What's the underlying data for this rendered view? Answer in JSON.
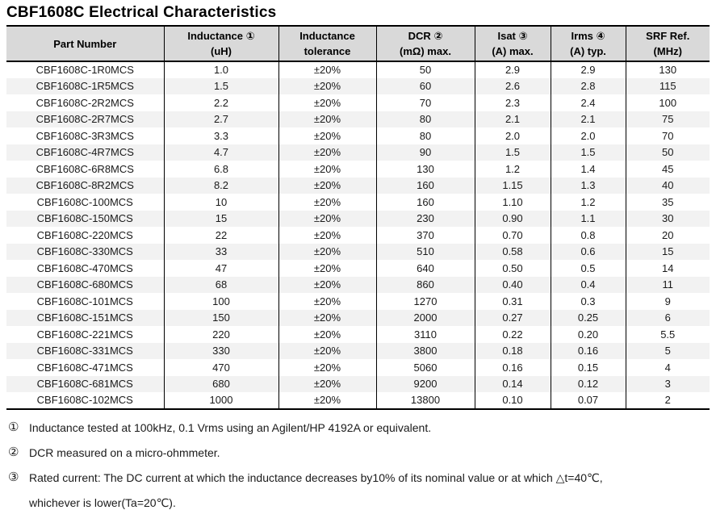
{
  "page_title": "CBF1608C Electrical Characteristics",
  "table": {
    "columns": [
      {
        "id": "part-number",
        "l1": "Part Number",
        "l2": ""
      },
      {
        "id": "inductance",
        "l1": "Inductance ①",
        "l2": "(uH)"
      },
      {
        "id": "tolerance",
        "l1": "Inductance",
        "l2": "tolerance"
      },
      {
        "id": "dcr",
        "l1": "DCR ②",
        "l2": "(mΩ) max."
      },
      {
        "id": "isat",
        "l1": "Isat ③",
        "l2": "(A) max."
      },
      {
        "id": "irms",
        "l1": "Irms ④",
        "l2": "(A) typ."
      },
      {
        "id": "srf",
        "l1": "SRF Ref.",
        "l2": "(MHz)"
      }
    ],
    "rows": [
      [
        "CBF1608C-1R0MCS",
        "1.0",
        "±20%",
        "50",
        "2.9",
        "2.9",
        "130"
      ],
      [
        "CBF1608C-1R5MCS",
        "1.5",
        "±20%",
        "60",
        "2.6",
        "2.8",
        "115"
      ],
      [
        "CBF1608C-2R2MCS",
        "2.2",
        "±20%",
        "70",
        "2.3",
        "2.4",
        "100"
      ],
      [
        "CBF1608C-2R7MCS",
        "2.7",
        "±20%",
        "80",
        "2.1",
        "2.1",
        "75"
      ],
      [
        "CBF1608C-3R3MCS",
        "3.3",
        "±20%",
        "80",
        "2.0",
        "2.0",
        "70"
      ],
      [
        "CBF1608C-4R7MCS",
        "4.7",
        "±20%",
        "90",
        "1.5",
        "1.5",
        "50"
      ],
      [
        "CBF1608C-6R8MCS",
        "6.8",
        "±20%",
        "130",
        "1.2",
        "1.4",
        "45"
      ],
      [
        "CBF1608C-8R2MCS",
        "8.2",
        "±20%",
        "160",
        "1.15",
        "1.3",
        "40"
      ],
      [
        "CBF1608C-100MCS",
        "10",
        "±20%",
        "160",
        "1.10",
        "1.2",
        "35"
      ],
      [
        "CBF1608C-150MCS",
        "15",
        "±20%",
        "230",
        "0.90",
        "1.1",
        "30"
      ],
      [
        "CBF1608C-220MCS",
        "22",
        "±20%",
        "370",
        "0.70",
        "0.8",
        "20"
      ],
      [
        "CBF1608C-330MCS",
        "33",
        "±20%",
        "510",
        "0.58",
        "0.6",
        "15"
      ],
      [
        "CBF1608C-470MCS",
        "47",
        "±20%",
        "640",
        "0.50",
        "0.5",
        "14"
      ],
      [
        "CBF1608C-680MCS",
        "68",
        "±20%",
        "860",
        "0.40",
        "0.4",
        "11"
      ],
      [
        "CBF1608C-101MCS",
        "100",
        "±20%",
        "1270",
        "0.31",
        "0.3",
        "9"
      ],
      [
        "CBF1608C-151MCS",
        "150",
        "±20%",
        "2000",
        "0.27",
        "0.25",
        "6"
      ],
      [
        "CBF1608C-221MCS",
        "220",
        "±20%",
        "3110",
        "0.22",
        "0.20",
        "5.5"
      ],
      [
        "CBF1608C-331MCS",
        "330",
        "±20%",
        "3800",
        "0.18",
        "0.16",
        "5"
      ],
      [
        "CBF1608C-471MCS",
        "470",
        "±20%",
        "5060",
        "0.16",
        "0.15",
        "4"
      ],
      [
        "CBF1608C-681MCS",
        "680",
        "±20%",
        "9200",
        "0.14",
        "0.12",
        "3"
      ],
      [
        "CBF1608C-102MCS",
        "1000",
        "±20%",
        "13800",
        "0.10",
        "0.07",
        "2"
      ]
    ]
  },
  "footnotes": [
    {
      "marker": "①",
      "lines": [
        "Inductance tested at 100kHz, 0.1 Vrms using an Agilent/HP 4192A or equivalent."
      ]
    },
    {
      "marker": "②",
      "lines": [
        "DCR measured on a micro-ohmmeter."
      ]
    },
    {
      "marker": "③",
      "lines": [
        "Rated current: The DC current at which the inductance decreases by10% of its nominal value or at which  △t=40℃,",
        "whichever is lower(Ta=20℃)."
      ]
    }
  ],
  "colors": {
    "header_bg": "#d9d9d9",
    "stripe_bg": "#f2f2f2",
    "border": "#000000",
    "text": "#111111"
  }
}
